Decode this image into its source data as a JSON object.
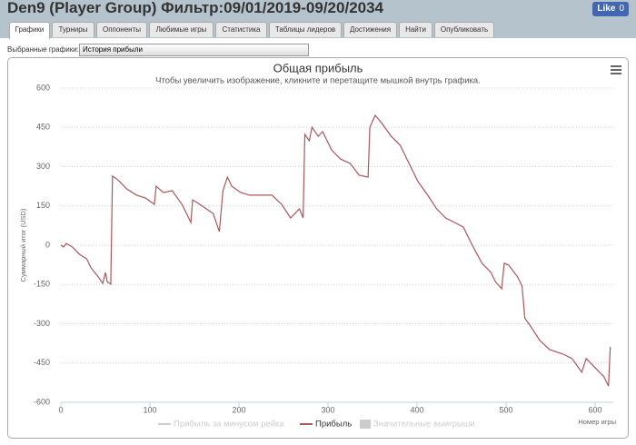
{
  "header": {
    "title": "Den9 (Player Group) Фильтр:09/01/2019-09/20/2034",
    "like": {
      "label": "Like",
      "count": 0
    }
  },
  "tabs": [
    "Графики",
    "Турниры",
    "Оппоненты",
    "Любимые игры",
    "Статистика",
    "Таблицы лидеров",
    "Достижения",
    "Найти",
    "Опубликовать"
  ],
  "selector": {
    "label": "Выбранные графики:",
    "value": "История прибыли"
  },
  "chart_data": {
    "type": "line",
    "title": "Общая прибыль",
    "subtitle": "Чтобы увеличить изображение, кликните и перетащите мышкой внутрь графика.",
    "x_label": "Номер игры",
    "y_label": "Суммарный итог (USD)",
    "xlim": [
      0,
      620
    ],
    "xticks": [
      0,
      100,
      200,
      300,
      400,
      500,
      600
    ],
    "ylim": [
      -600,
      600
    ],
    "yticks": [
      -600,
      -450,
      -300,
      -150,
      0,
      150,
      300,
      450,
      600
    ],
    "grid": true,
    "inactive_legend": [
      "Прибыль за минусом рейка",
      "Значительные выигрыши"
    ],
    "series": [
      {
        "name": "Прибыль",
        "color": "#a8575b",
        "x": [
          0,
          3,
          6,
          13,
          21,
          29,
          34,
          42,
          47,
          50,
          52,
          56,
          58,
          64,
          74,
          85,
          95,
          105,
          107,
          115,
          125,
          136,
          146,
          148,
          156,
          171,
          178,
          182,
          187,
          192,
          202,
          212,
          227,
          237,
          248,
          258,
          268,
          272,
          274,
          279,
          282,
          289,
          294,
          304,
          314,
          325,
          335,
          345,
          347,
          353,
          360,
          371,
          381,
          391,
          401,
          412,
          422,
          432,
          442,
          452,
          462,
          473,
          483,
          488,
          495,
          498,
          503,
          513,
          518,
          521,
          528,
          538,
          549,
          564,
          574,
          585,
          590,
          600,
          610,
          615,
          617
        ],
        "values": [
          0,
          -7,
          7,
          -7,
          -35,
          -52,
          -87,
          -121,
          -146,
          -104,
          -139,
          -149,
          264,
          250,
          215,
          191,
          180,
          156,
          225,
          201,
          208,
          156,
          87,
          173,
          156,
          121,
          52,
          208,
          260,
          225,
          201,
          191,
          191,
          191,
          156,
          104,
          139,
          104,
          423,
          399,
          451,
          416,
          434,
          364,
          329,
          312,
          267,
          260,
          451,
          496,
          468,
          416,
          382,
          312,
          243,
          191,
          139,
          104,
          87,
          69,
          0,
          -69,
          -104,
          -139,
          -166,
          -69,
          -76,
          -121,
          -156,
          -278,
          -312,
          -364,
          -399,
          -416,
          -433,
          -485,
          -433,
          -468,
          -503,
          -538,
          -388
        ]
      }
    ]
  }
}
